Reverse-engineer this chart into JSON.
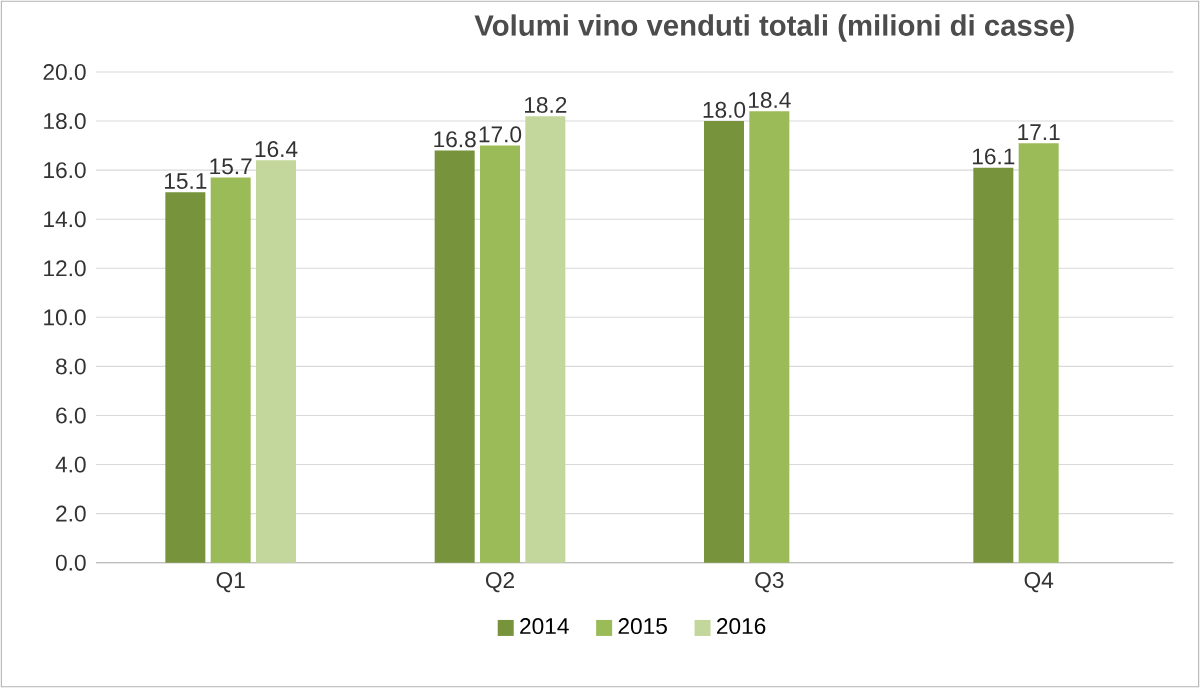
{
  "chart_data": {
    "type": "bar",
    "title": "Volumi vino venduti totali (milioni di casse)",
    "categories": [
      "Q1",
      "Q2",
      "Q3",
      "Q4"
    ],
    "series": [
      {
        "name": "2014",
        "color": "#77933c",
        "values": [
          15.1,
          16.8,
          18.0,
          16.1
        ],
        "value_labels": [
          "15.1",
          "16.8",
          "18.0",
          "16.1"
        ]
      },
      {
        "name": "2015",
        "color": "#9bbb59",
        "values": [
          15.7,
          17.0,
          18.4,
          17.1
        ],
        "value_labels": [
          "15.7",
          "17.0",
          "18.4",
          "17.1"
        ]
      },
      {
        "name": "2016",
        "color": "#c3d69b",
        "values": [
          16.4,
          18.2,
          null,
          null
        ],
        "value_labels": [
          "16.4",
          "18.2",
          null,
          null
        ]
      }
    ],
    "ylim": [
      0,
      20
    ],
    "yticks": [
      {
        "value": 0,
        "label": "0.0"
      },
      {
        "value": 2,
        "label": "2.0"
      },
      {
        "value": 4,
        "label": "4.0"
      },
      {
        "value": 6,
        "label": "6.0"
      },
      {
        "value": 8,
        "label": "8.0"
      },
      {
        "value": 10,
        "label": "10.0"
      },
      {
        "value": 12,
        "label": "12.0"
      },
      {
        "value": 14,
        "label": "14.0"
      },
      {
        "value": 16,
        "label": "16.0"
      },
      {
        "value": 18,
        "label": "18.0"
      },
      {
        "value": 20,
        "label": "20.0"
      }
    ],
    "grid": "y",
    "legend": "bottom"
  }
}
